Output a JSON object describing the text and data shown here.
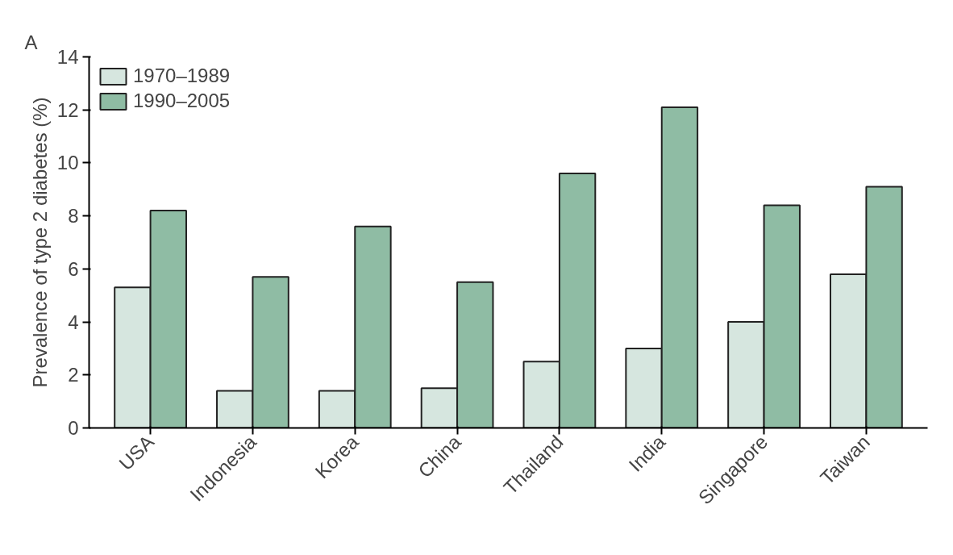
{
  "chart_data": {
    "type": "bar",
    "ylabel": "Prevalence of type 2 diabetes (%)",
    "categories": [
      "USA",
      "Indonesia",
      "Korea",
      "China",
      "Thailand",
      "India",
      "Singapore",
      "Taiwan"
    ],
    "series": [
      {
        "name": "1970–1989",
        "color": "#d6e6df",
        "values": [
          5.3,
          1.4,
          1.4,
          1.5,
          2.5,
          3.0,
          4.0,
          5.8
        ]
      },
      {
        "name": "1990–2005",
        "color": "#8fbca4",
        "values": [
          8.2,
          5.7,
          7.6,
          5.5,
          9.6,
          12.1,
          8.4,
          9.1
        ]
      }
    ],
    "ylim": [
      0,
      14
    ],
    "yticks": [
      0,
      2,
      4,
      6,
      8,
      10,
      12,
      14
    ],
    "grid": false,
    "legend": "top left",
    "annotations": [
      "A"
    ]
  }
}
